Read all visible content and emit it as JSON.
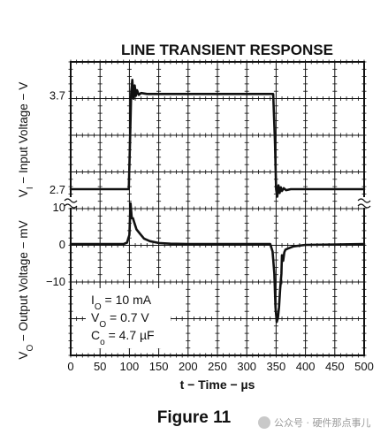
{
  "chart_data": {
    "type": "line",
    "title": "LINE TRANSIENT RESPONSE",
    "xlabel": "t − Time − µs",
    "x_ticks": [
      "0",
      "50",
      "100",
      "150",
      "200",
      "250",
      "300",
      "350",
      "400",
      "450",
      "500"
    ],
    "xlim": [
      0,
      500
    ],
    "grid": true,
    "panels": [
      {
        "name": "input",
        "ylabel_main": "Input Voltage − V",
        "ylabel_sym": "V",
        "ylabel_sub": "I",
        "y_ticks": [
          "3.7",
          "2.7"
        ],
        "y_tick_values": [
          3.7,
          2.7
        ],
        "ylim": [
          2.55,
          4.05
        ],
        "series": [
          {
            "x": [
              0,
              99,
              101,
              103,
              105,
              107,
              109,
              111,
              113,
              116,
              120,
              130,
              200,
              300,
              345,
              348,
              350,
              352,
              354,
              356,
              358,
              360,
              363,
              367,
              375,
              420,
              500
            ],
            "values": [
              2.7,
              2.7,
              3.2,
              3.72,
              3.86,
              3.66,
              3.8,
              3.69,
              3.75,
              3.7,
              3.72,
              3.71,
              3.71,
              3.71,
              3.71,
              3.2,
              2.7,
              2.62,
              2.74,
              2.66,
              2.72,
              2.68,
              2.71,
              2.69,
              2.7,
              2.7,
              2.7
            ]
          }
        ]
      },
      {
        "name": "output",
        "ylabel_main": "Output Voltage − mV",
        "ylabel_sym": "V",
        "ylabel_sub": "O",
        "y_ticks": [
          "10",
          "0",
          "−10"
        ],
        "y_tick_values": [
          10,
          0,
          -10
        ],
        "ylim": [
          -30,
          11
        ],
        "series": [
          {
            "x": [
              0,
              90,
              96,
              100,
              102,
              104,
              106,
              108,
              112,
              118,
              125,
              135,
              150,
              170,
              200,
              250,
              300,
              340,
              344,
              347,
              349,
              351,
              353,
              355,
              357,
              359,
              360,
              362,
              364,
              366,
              370,
              380,
              400,
              500
            ],
            "values": [
              0,
              0,
              0.4,
              2.5,
              11,
              7,
              7,
              6,
              4,
              2.8,
              1.5,
              0.8,
              0.3,
              0.1,
              0,
              0,
              0,
              0,
              -2,
              -8,
              -17,
              -21,
              -20,
              -17,
              -12,
              -8,
              -3,
              -4.5,
              -2.2,
              -1.5,
              -1.2,
              -0.6,
              -0.2,
              0
            ]
          }
        ]
      }
    ],
    "annotations": [
      {
        "pre": "I",
        "sub": "O",
        "post": " = 10 mA"
      },
      {
        "pre": "V",
        "sub": "O",
        "post": " = 0.7 V"
      },
      {
        "pre": "C",
        "sub": "o",
        "post": " = 4.7 µF"
      }
    ],
    "caption": "Figure 11"
  },
  "watermark": "公众号 · 硬件那点事儿",
  "colors": {
    "trace": "#111111",
    "grid": "#111111",
    "background": "#ffffff"
  }
}
